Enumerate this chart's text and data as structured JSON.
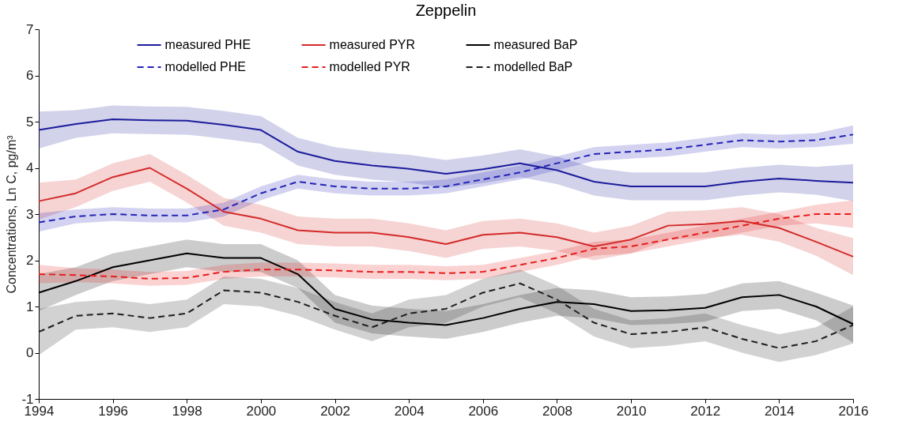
{
  "chart_data": {
    "type": "line",
    "title": "Zeppelin",
    "ylabel": "Concentrations, Ln C, pg/m³",
    "x": [
      1994,
      1995,
      1996,
      1997,
      1998,
      1999,
      2000,
      2001,
      2002,
      2003,
      2004,
      2005,
      2006,
      2007,
      2008,
      2009,
      2010,
      2011,
      2012,
      2013,
      2014,
      2015,
      2016
    ],
    "xlim": [
      1994,
      2016
    ],
    "xticks": [
      1994,
      1996,
      1998,
      2000,
      2002,
      2004,
      2006,
      2008,
      2010,
      2012,
      2014,
      2016
    ],
    "ylim": [
      -1,
      7
    ],
    "yticks": [
      -1,
      0,
      1,
      2,
      3,
      4,
      5,
      6,
      7
    ],
    "grid": false,
    "legend": "top",
    "marker": "none",
    "series": [
      {
        "name": "measured PHE",
        "color": "#1c1c9c",
        "line_style": "solid",
        "values": [
          4.82,
          4.95,
          5.05,
          5.03,
          5.02,
          4.93,
          4.82,
          4.35,
          4.15,
          4.05,
          3.98,
          3.87,
          3.97,
          4.1,
          3.95,
          3.7,
          3.6,
          3.6,
          3.6,
          3.7,
          3.77,
          3.72,
          3.68
        ],
        "lower": [
          4.42,
          4.65,
          4.75,
          4.73,
          4.72,
          4.63,
          4.52,
          4.05,
          3.85,
          3.75,
          3.68,
          3.57,
          3.67,
          3.8,
          3.65,
          3.4,
          3.3,
          3.3,
          3.3,
          3.4,
          3.47,
          3.42,
          3.28
        ],
        "upper": [
          5.22,
          5.25,
          5.35,
          5.33,
          5.32,
          5.23,
          5.12,
          4.65,
          4.45,
          4.35,
          4.28,
          4.17,
          4.27,
          4.4,
          4.25,
          4.0,
          3.9,
          3.9,
          3.9,
          4.0,
          4.07,
          4.02,
          4.08
        ]
      },
      {
        "name": "measured PYR",
        "color": "#d42a2a",
        "line_style": "solid",
        "values": [
          3.28,
          3.45,
          3.8,
          4.0,
          3.55,
          3.05,
          2.9,
          2.65,
          2.6,
          2.6,
          2.5,
          2.35,
          2.55,
          2.6,
          2.5,
          2.3,
          2.45,
          2.75,
          2.78,
          2.85,
          2.7,
          2.4,
          2.08
        ],
        "lower": [
          2.88,
          3.15,
          3.5,
          3.7,
          3.25,
          2.75,
          2.6,
          2.35,
          2.3,
          2.3,
          2.2,
          2.05,
          2.25,
          2.3,
          2.2,
          2.0,
          2.15,
          2.45,
          2.48,
          2.55,
          2.4,
          2.1,
          1.68
        ],
        "upper": [
          3.68,
          3.75,
          4.1,
          4.3,
          3.85,
          3.35,
          3.2,
          2.95,
          2.9,
          2.9,
          2.8,
          2.65,
          2.85,
          2.9,
          2.8,
          2.6,
          2.75,
          3.05,
          3.08,
          3.15,
          3.0,
          2.7,
          2.48
        ]
      },
      {
        "name": "measured BaP",
        "color": "#000000",
        "line_style": "solid",
        "values": [
          1.3,
          1.55,
          1.85,
          2.0,
          2.15,
          2.05,
          2.05,
          1.7,
          0.95,
          0.72,
          0.65,
          0.6,
          0.75,
          0.95,
          1.1,
          1.05,
          0.9,
          0.92,
          0.97,
          1.2,
          1.25,
          1.0,
          0.62
        ],
        "lower": [
          0.9,
          1.25,
          1.55,
          1.7,
          1.85,
          1.75,
          1.75,
          1.4,
          0.65,
          0.42,
          0.35,
          0.3,
          0.45,
          0.65,
          0.8,
          0.75,
          0.6,
          0.62,
          0.67,
          0.9,
          0.95,
          0.7,
          0.22
        ],
        "upper": [
          1.7,
          1.85,
          2.15,
          2.3,
          2.45,
          2.35,
          2.35,
          2.0,
          1.25,
          1.02,
          0.95,
          0.9,
          1.05,
          1.25,
          1.4,
          1.35,
          1.2,
          1.22,
          1.27,
          1.5,
          1.55,
          1.3,
          1.02
        ]
      },
      {
        "name": "modelled PHE",
        "color": "#2424b8",
        "line_style": "dashed",
        "values": [
          2.82,
          2.95,
          3.0,
          2.97,
          2.97,
          3.1,
          3.45,
          3.7,
          3.6,
          3.55,
          3.55,
          3.6,
          3.75,
          3.9,
          4.1,
          4.3,
          4.35,
          4.4,
          4.5,
          4.6,
          4.57,
          4.6,
          4.72
        ],
        "lower": [
          2.62,
          2.8,
          2.85,
          2.82,
          2.82,
          2.95,
          3.3,
          3.55,
          3.45,
          3.4,
          3.4,
          3.45,
          3.6,
          3.75,
          3.95,
          4.15,
          4.2,
          4.25,
          4.35,
          4.45,
          4.42,
          4.45,
          4.52
        ],
        "upper": [
          3.02,
          3.1,
          3.15,
          3.12,
          3.12,
          3.25,
          3.6,
          3.85,
          3.75,
          3.7,
          3.7,
          3.75,
          3.9,
          4.05,
          4.25,
          4.45,
          4.5,
          4.55,
          4.65,
          4.75,
          4.72,
          4.75,
          4.92
        ]
      },
      {
        "name": "modelled PYR",
        "color": "#e61e1e",
        "line_style": "dashed",
        "values": [
          1.7,
          1.68,
          1.65,
          1.6,
          1.62,
          1.75,
          1.8,
          1.8,
          1.78,
          1.75,
          1.75,
          1.72,
          1.75,
          1.9,
          2.05,
          2.25,
          2.3,
          2.45,
          2.6,
          2.75,
          2.9,
          3.0,
          3.0
        ],
        "lower": [
          1.5,
          1.53,
          1.5,
          1.45,
          1.47,
          1.6,
          1.65,
          1.65,
          1.63,
          1.6,
          1.6,
          1.57,
          1.6,
          1.75,
          1.9,
          2.1,
          2.15,
          2.3,
          2.45,
          2.6,
          2.75,
          2.8,
          2.7
        ],
        "upper": [
          1.9,
          1.83,
          1.8,
          1.75,
          1.77,
          1.9,
          1.95,
          1.95,
          1.93,
          1.9,
          1.9,
          1.87,
          1.9,
          2.05,
          2.2,
          2.4,
          2.45,
          2.6,
          2.75,
          2.9,
          3.05,
          3.2,
          3.3
        ]
      },
      {
        "name": "modelled BaP",
        "color": "#1e1e1e",
        "line_style": "dashed",
        "values": [
          0.45,
          0.8,
          0.85,
          0.75,
          0.85,
          1.35,
          1.3,
          1.1,
          0.8,
          0.55,
          0.85,
          0.95,
          1.3,
          1.5,
          1.15,
          0.65,
          0.4,
          0.45,
          0.55,
          0.3,
          0.1,
          0.25,
          0.6
        ],
        "lower": [
          -0.05,
          0.5,
          0.55,
          0.45,
          0.55,
          1.05,
          1.0,
          0.8,
          0.5,
          0.25,
          0.55,
          0.65,
          1.0,
          1.2,
          0.85,
          0.35,
          0.1,
          0.15,
          0.25,
          0.0,
          -0.2,
          -0.05,
          0.2
        ],
        "upper": [
          0.95,
          1.1,
          1.15,
          1.05,
          1.15,
          1.65,
          1.6,
          1.4,
          1.1,
          0.85,
          1.15,
          1.25,
          1.6,
          1.8,
          1.45,
          0.95,
          0.7,
          0.75,
          0.85,
          0.6,
          0.4,
          0.55,
          1.0
        ]
      }
    ]
  }
}
